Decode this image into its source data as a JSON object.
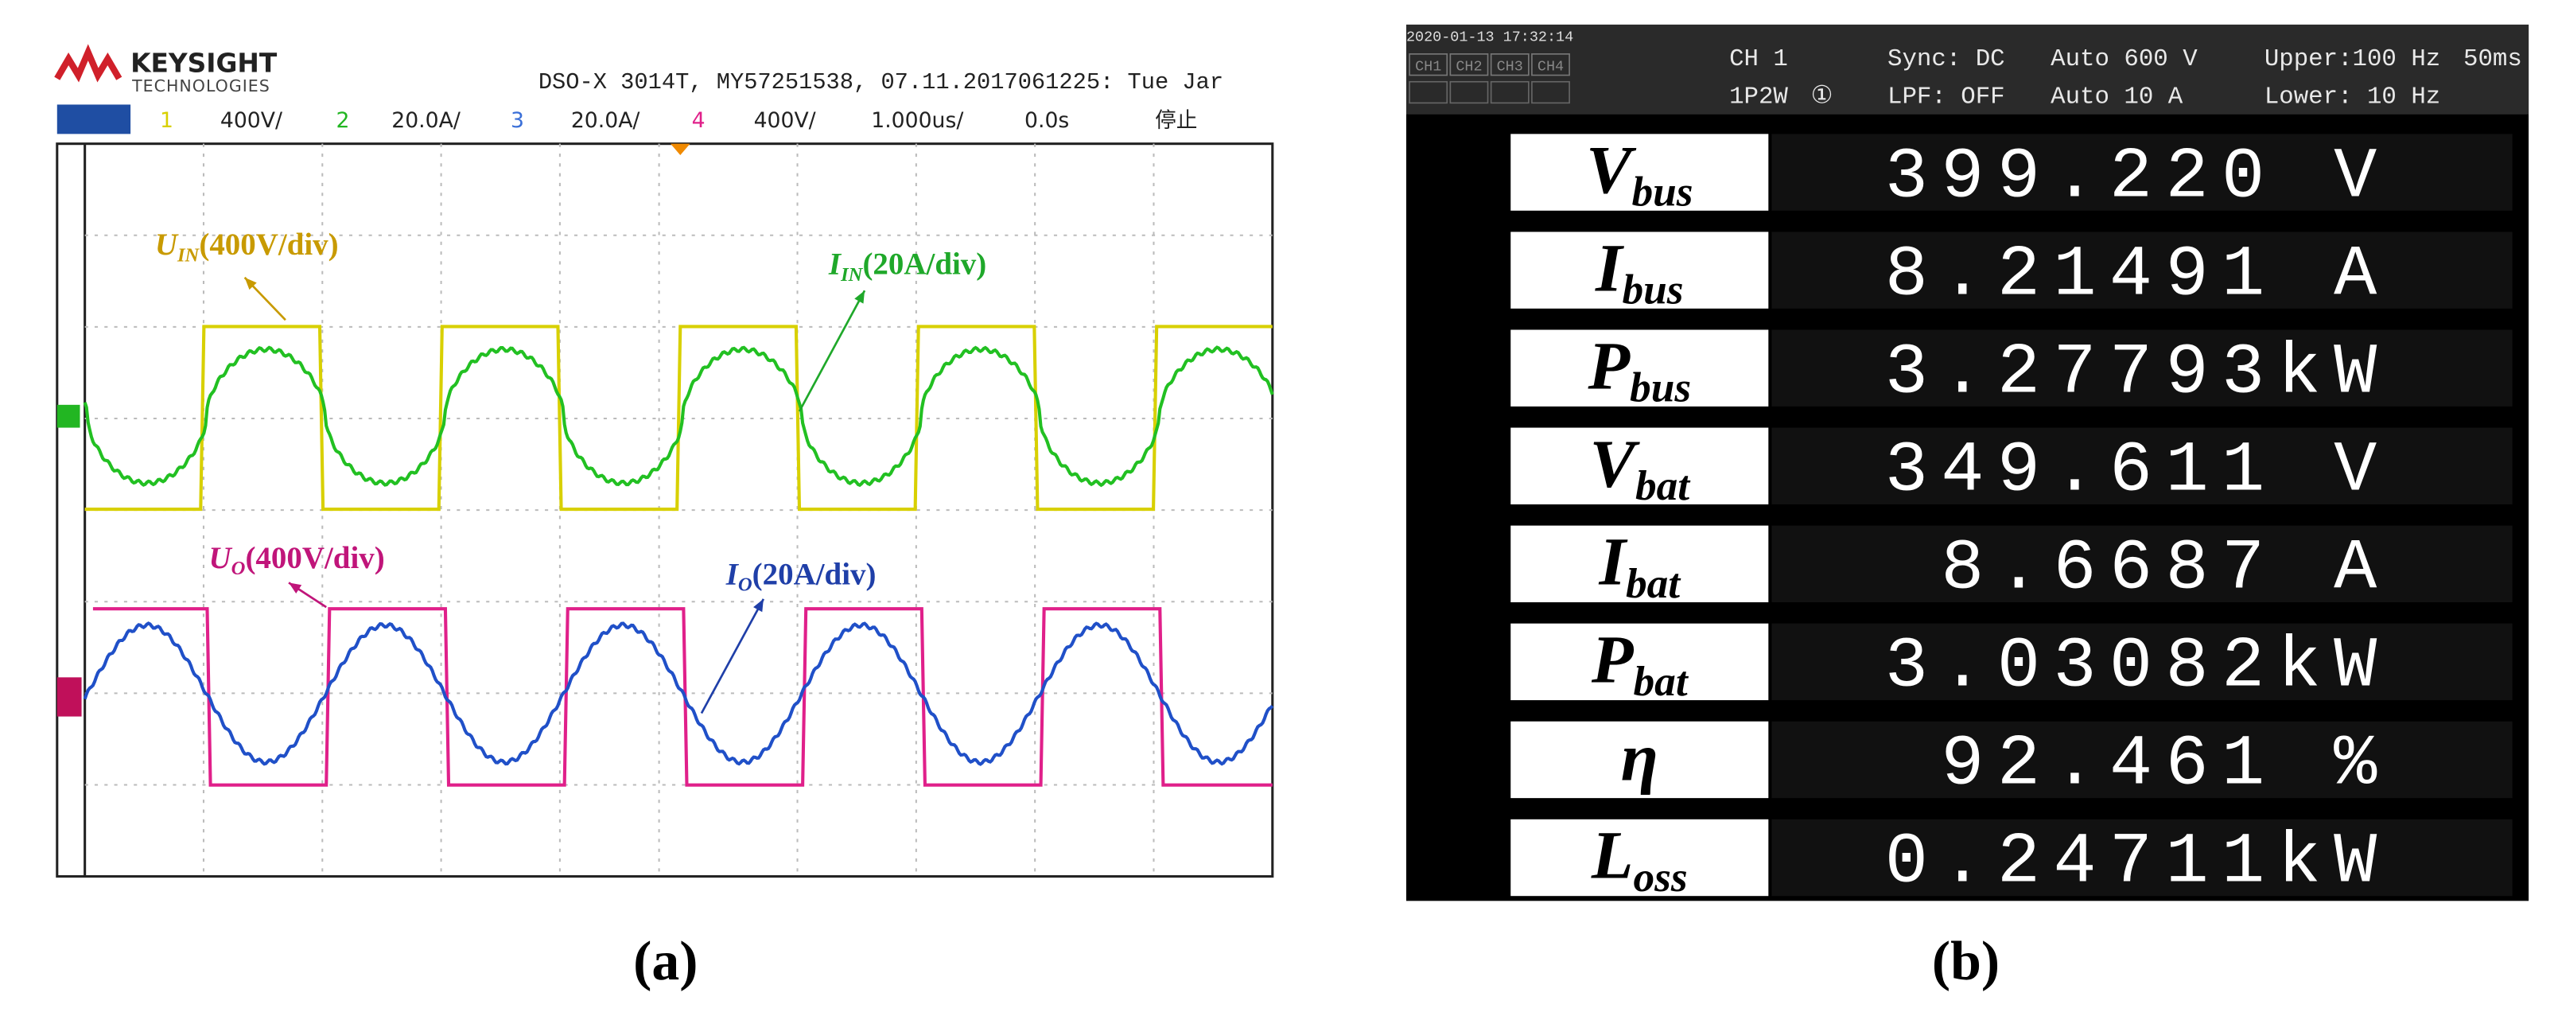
{
  "panel_a": {
    "logo": {
      "brand": "KEYSIGHT",
      "sub": "TECHNOLOGIES"
    },
    "header": "DSO-X 3014T, MY57251538, 07.11.2017061225: Tue Jar",
    "channels": [
      {
        "num": "1",
        "scale": "400V/"
      },
      {
        "num": "2",
        "scale": "20.0A/"
      },
      {
        "num": "3",
        "scale": "20.0A/"
      },
      {
        "num": "4",
        "scale": "400V/"
      }
    ],
    "timebase": "1.000us/",
    "delay": "0.0s",
    "status": "停止",
    "annotations": [
      {
        "main": "U",
        "sub": "IN",
        "rest": "(400V/div)"
      },
      {
        "main": "I",
        "sub": "IN",
        "rest": "(20A/div)"
      },
      {
        "main": "U",
        "sub": "O",
        "rest": "(400V/div)"
      },
      {
        "main": "I",
        "sub": "O",
        "rest": "(20A/div)"
      }
    ],
    "caption": "(a)"
  },
  "panel_b": {
    "timestamp": "2020-01-13 17:32:14",
    "ch_boxes": [
      "CH1",
      "CH2",
      "CH3",
      "CH4"
    ],
    "channel": "CH 1",
    "wiring": "1P2W",
    "element": "①",
    "sync": "Sync: DC",
    "lpf": "LPF: OFF",
    "v_range": "Auto 600 V",
    "i_range": "Auto 10 A",
    "upper": "Upper:100 Hz",
    "lower": "Lower: 10 Hz",
    "rate": "50ms",
    "rows": [
      {
        "main": "V",
        "sub": "bus",
        "value": "399.220 V"
      },
      {
        "main": "I",
        "sub": "bus",
        "value": "8.21491 A"
      },
      {
        "main": "P",
        "sub": "bus",
        "value": "3.27793kW"
      },
      {
        "main": "V",
        "sub": "bat",
        "value": "349.611 V"
      },
      {
        "main": "I",
        "sub": "bat",
        "value": "8.6687 A"
      },
      {
        "main": "P",
        "sub": "bat",
        "value": "3.03082kW"
      },
      {
        "main": "η",
        "value": "92.461 %"
      },
      {
        "main": "L",
        "sub": "oss",
        "value": "0.24711kW"
      }
    ],
    "caption": "(b)"
  }
}
